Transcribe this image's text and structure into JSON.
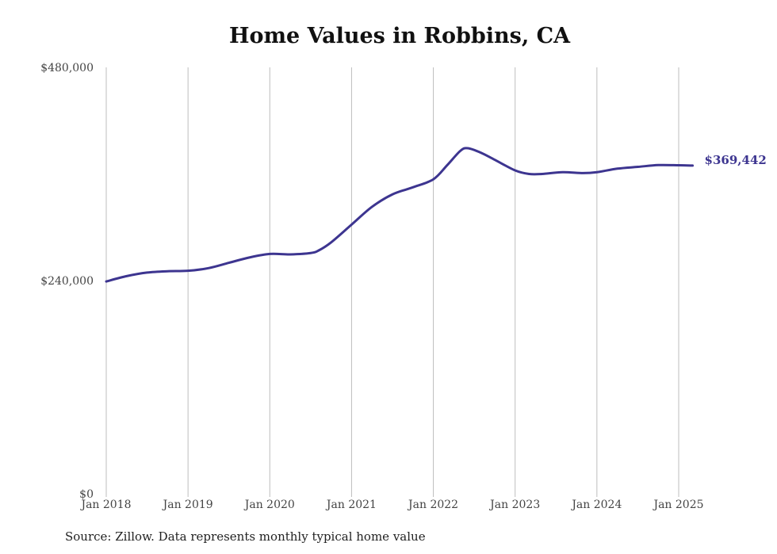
{
  "chart_data": {
    "type": "line",
    "title": "Home Values in Robbins, CA",
    "xlabel": "",
    "ylabel": "",
    "ylim": [
      0,
      480000
    ],
    "y_ticks": [
      "$0",
      "$240,000",
      "$480,000"
    ],
    "y_tick_values": [
      0,
      240000,
      480000
    ],
    "x_ticks": [
      "Jan 2018",
      "Jan 2019",
      "Jan 2020",
      "Jan 2021",
      "Jan 2022",
      "Jan 2023",
      "Jan 2024",
      "Jan 2025"
    ],
    "x_tick_values": [
      2018,
      2019,
      2020,
      2021,
      2022,
      2023,
      2024,
      2025
    ],
    "xlim": [
      2018,
      2025.17
    ],
    "grid": "vertical",
    "series": [
      {
        "color": "#3d3590",
        "points": [
          [
            2018.0,
            239000
          ],
          [
            2018.25,
            245000
          ],
          [
            2018.5,
            249000
          ],
          [
            2018.75,
            250500
          ],
          [
            2019.0,
            251000
          ],
          [
            2019.25,
            254000
          ],
          [
            2019.5,
            260000
          ],
          [
            2019.75,
            266000
          ],
          [
            2020.0,
            270000
          ],
          [
            2020.25,
            269500
          ],
          [
            2020.5,
            271000
          ],
          [
            2020.6,
            274000
          ],
          [
            2020.75,
            283000
          ],
          [
            2021.0,
            303000
          ],
          [
            2021.25,
            323000
          ],
          [
            2021.5,
            337000
          ],
          [
            2021.75,
            345000
          ],
          [
            2022.0,
            354000
          ],
          [
            2022.17,
            370000
          ],
          [
            2022.33,
            386000
          ],
          [
            2022.42,
            389000
          ],
          [
            2022.58,
            384000
          ],
          [
            2022.75,
            376000
          ],
          [
            2023.0,
            364000
          ],
          [
            2023.17,
            360000
          ],
          [
            2023.33,
            360000
          ],
          [
            2023.58,
            362000
          ],
          [
            2023.83,
            361000
          ],
          [
            2024.0,
            362000
          ],
          [
            2024.25,
            366000
          ],
          [
            2024.5,
            368000
          ],
          [
            2024.75,
            370000
          ],
          [
            2025.0,
            369800
          ],
          [
            2025.17,
            369442
          ]
        ],
        "end_label": "$369,442"
      }
    ]
  },
  "footer": {
    "source": "Source: Zillow. Data represents monthly typical home value"
  }
}
